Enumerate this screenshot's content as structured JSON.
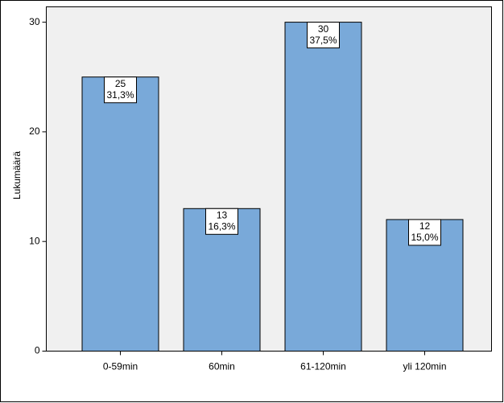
{
  "chart_data": {
    "type": "bar",
    "y_label": "Lukumäärä",
    "categories": [
      "0-59min",
      "60min",
      "61-120min",
      "yli 120min"
    ],
    "values": [
      25,
      13,
      30,
      12
    ],
    "percents": {
      "values": [
        31.3,
        16.3,
        37.5,
        15.0
      ],
      "value_labels": [
        "31,3%",
        "16,3%",
        "37,5%",
        "15,0%"
      ]
    },
    "color": "#79a9d9",
    "ylim": [
      0,
      31.4
    ],
    "yticks": [
      0,
      10,
      20,
      30
    ],
    "grid": false
  }
}
